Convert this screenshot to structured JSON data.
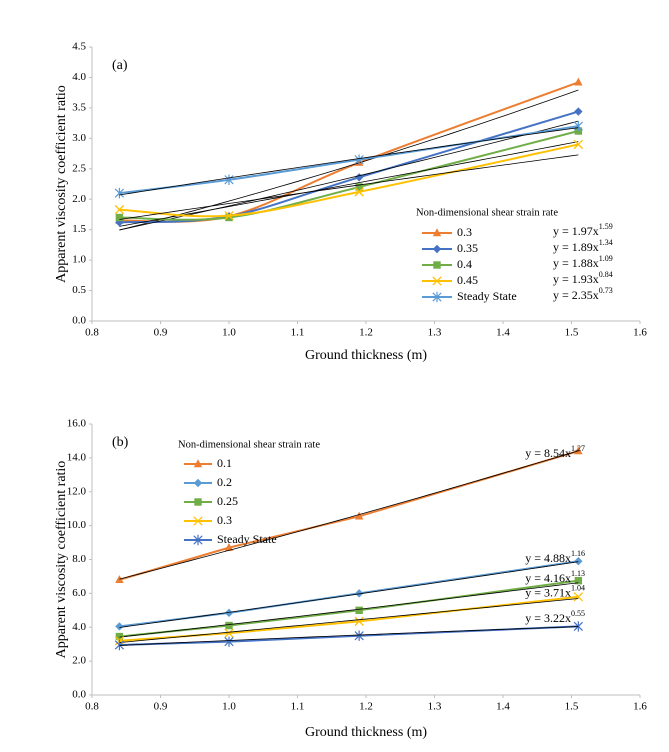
{
  "chart_data": [
    {
      "type": "line",
      "panel_label": "(a)",
      "x_label": "Ground thickness (m)",
      "y_label": "Apparent viscosity coefficient ratio",
      "legend_title": "Non-dimensional shear strain rate",
      "x": [
        0.84,
        1.0,
        1.19,
        1.51
      ],
      "xlim": [
        0.8,
        1.6
      ],
      "xticks": [
        0.8,
        0.9,
        {
          "value": 1,
          "label": "1.0"
        },
        1.1,
        1.2,
        1.3,
        1.4,
        1.5,
        1.6
      ],
      "ylim": [
        0,
        4.5
      ],
      "yticks": [
        {
          "value": 0,
          "label": "0.0"
        },
        0.5,
        {
          "value": 1,
          "label": "1.0"
        },
        1.5,
        {
          "value": 2,
          "label": "2.0"
        },
        2.5,
        {
          "value": 3,
          "label": "3.0"
        },
        3.5,
        {
          "value": 4,
          "label": "4.0"
        },
        4.5
      ],
      "grid": false,
      "smooth": true,
      "series": [
        {
          "name": "0.3",
          "color": "#ED7D31",
          "marker": "triangle",
          "values": [
            1.65,
            1.72,
            2.6,
            3.92
          ],
          "trendline": {
            "a": 1.97,
            "b": 1.59,
            "label": "y = 1.97x",
            "exponent_label": "1.59"
          }
        },
        {
          "name": "0.35",
          "color": "#4472C4",
          "marker": "diamond",
          "values": [
            1.62,
            1.72,
            2.36,
            3.44
          ],
          "trendline": {
            "a": 1.89,
            "b": 1.34,
            "label": "y = 1.89x",
            "exponent_label": "1.34"
          }
        },
        {
          "name": "0.4",
          "color": "#70AD47",
          "marker": "square",
          "values": [
            1.7,
            1.7,
            2.2,
            3.12
          ],
          "trendline": {
            "a": 1.88,
            "b": 1.09,
            "label": "y = 1.88x",
            "exponent_label": "1.09"
          }
        },
        {
          "name": "0.45",
          "color": "#FFC000",
          "marker": "x",
          "values": [
            1.83,
            1.73,
            2.12,
            2.9
          ],
          "trendline": {
            "a": 1.93,
            "b": 0.84,
            "label": "y = 1.93x",
            "exponent_label": "0.84"
          }
        },
        {
          "name": "Steady State",
          "color": "#5B9BD5",
          "marker": "star",
          "values": [
            2.1,
            2.32,
            2.65,
            3.2
          ],
          "trendline": {
            "a": 2.35,
            "b": 0.73,
            "label": "y = 2.35x",
            "exponent_label": "0.73"
          }
        }
      ]
    },
    {
      "type": "line",
      "panel_label": "(b)",
      "x_label": "Ground thickness (m)",
      "y_label": "Apparent viscosity coefficient ratio",
      "legend_title": "Non-dimensional shear strain rate",
      "x": [
        0.84,
        1.0,
        1.19,
        1.51
      ],
      "xlim": [
        0.8,
        1.6
      ],
      "xticks": [
        0.8,
        0.9,
        {
          "value": 1,
          "label": "1.0"
        },
        1.1,
        1.2,
        1.3,
        1.4,
        1.5,
        1.6
      ],
      "ylim": [
        0,
        16
      ],
      "yticks": [
        {
          "value": 0,
          "label": "0.0"
        },
        {
          "value": 2,
          "label": "2.0"
        },
        {
          "value": 4,
          "label": "4.0"
        },
        {
          "value": 6,
          "label": "6.0"
        },
        {
          "value": 8,
          "label": "8.0"
        },
        {
          "value": 10,
          "label": "10.0"
        },
        {
          "value": 12,
          "label": "12.0"
        },
        {
          "value": 14,
          "label": "14.0"
        },
        {
          "value": 16,
          "label": "16.0"
        }
      ],
      "grid": false,
      "smooth": false,
      "series": [
        {
          "name": "0.1",
          "color": "#ED7D31",
          "marker": "triangle",
          "values": [
            6.8,
            8.7,
            10.55,
            14.4
          ],
          "trendline": {
            "a": 8.54,
            "b": 1.27,
            "label": "y = 8.54x",
            "exponent_label": "1.27"
          }
        },
        {
          "name": "0.2",
          "color": "#5B9BD5",
          "marker": "diamond",
          "values": [
            4.05,
            4.85,
            6.0,
            7.9
          ],
          "trendline": {
            "a": 4.88,
            "b": 1.16,
            "label": "y = 4.88x",
            "exponent_label": "1.16"
          }
        },
        {
          "name": "0.25",
          "color": "#70AD47",
          "marker": "square",
          "values": [
            3.45,
            4.1,
            5.0,
            6.75
          ],
          "trendline": {
            "a": 4.16,
            "b": 1.13,
            "label": "y = 4.16x",
            "exponent_label": "1.13"
          }
        },
        {
          "name": "0.3",
          "color": "#FFC000",
          "marker": "x",
          "values": [
            3.2,
            3.65,
            4.35,
            5.8
          ],
          "trendline": {
            "a": 3.71,
            "b": 1.04,
            "label": "y = 3.71x",
            "exponent_label": "1.04"
          }
        },
        {
          "name": "Steady State",
          "color": "#4472C4",
          "marker": "star",
          "values": [
            2.95,
            3.15,
            3.5,
            4.05
          ],
          "trendline": {
            "a": 3.22,
            "b": 0.55,
            "label": "y = 3.22x",
            "exponent_label": "0.55"
          }
        }
      ]
    }
  ]
}
